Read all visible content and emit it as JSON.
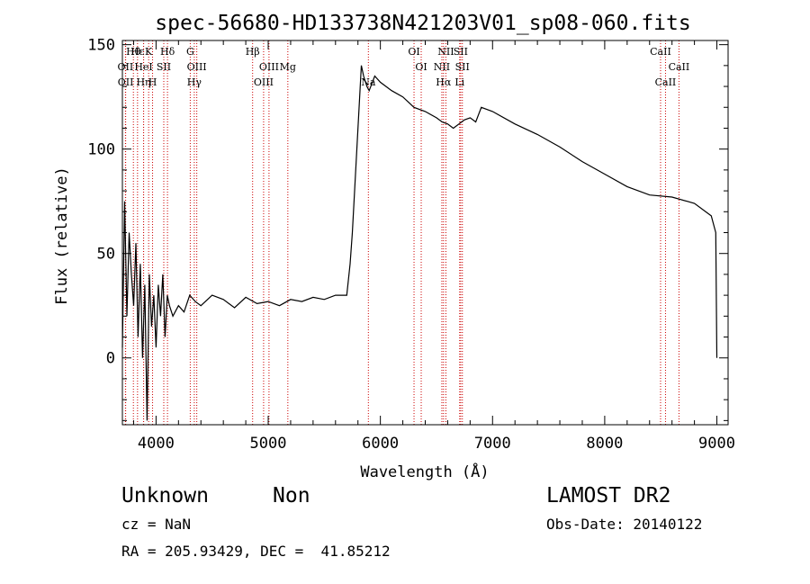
{
  "chart_data": {
    "type": "line",
    "title": "spec-56680-HD133738N421203V01_sp08-060.fits",
    "xlabel": "Wavelength (Å)",
    "ylabel": "Flux (relative)",
    "xlim": [
      3700,
      9100
    ],
    "ylim": [
      -32,
      152
    ],
    "x_ticks": [
      4000,
      5000,
      6000,
      7000,
      8000,
      9000
    ],
    "x_tick_labels": [
      "4000",
      "5000",
      "6000",
      "7000",
      "8000",
      "9000"
    ],
    "y_ticks": [
      0,
      50,
      100,
      150
    ],
    "y_tick_labels": [
      "0",
      "50",
      "100",
      "150"
    ],
    "grid": false,
    "series": [
      {
        "color": "#000000",
        "x": [
          3700,
          3720,
          3740,
          3760,
          3780,
          3800,
          3820,
          3840,
          3860,
          3880,
          3900,
          3920,
          3940,
          3960,
          3980,
          4000,
          4020,
          4040,
          4060,
          4080,
          4100,
          4120,
          4150,
          4200,
          4250,
          4300,
          4350,
          4400,
          4500,
          4600,
          4700,
          4800,
          4900,
          5000,
          5100,
          5200,
          5300,
          5400,
          5500,
          5600,
          5700,
          5730,
          5750,
          5770,
          5790,
          5810,
          5830,
          5850,
          5880,
          5900,
          5950,
          6000,
          6100,
          6200,
          6300,
          6400,
          6500,
          6550,
          6600,
          6650,
          6700,
          6750,
          6800,
          6850,
          6900,
          7000,
          7200,
          7400,
          7600,
          7800,
          8000,
          8200,
          8400,
          8600,
          8800,
          8950,
          8990,
          9000
        ],
        "y": [
          5,
          75,
          20,
          60,
          40,
          25,
          55,
          10,
          45,
          0,
          35,
          -30,
          40,
          15,
          30,
          5,
          35,
          20,
          40,
          10,
          30,
          25,
          20,
          25,
          22,
          30,
          27,
          25,
          30,
          28,
          24,
          29,
          26,
          27,
          25,
          28,
          27,
          29,
          28,
          30,
          30,
          45,
          60,
          80,
          100,
          120,
          140,
          135,
          130,
          128,
          135,
          132,
          128,
          125,
          120,
          118,
          115,
          113,
          112,
          110,
          112,
          114,
          115,
          113,
          120,
          118,
          112,
          107,
          101,
          94,
          88,
          82,
          78,
          77,
          74,
          68,
          60,
          0
        ]
      }
    ],
    "line_markers": [
      {
        "label": "Hθ",
        "x": 3798
      },
      {
        "label": "OII",
        "x": 3727
      },
      {
        "label": "OII",
        "x": 3729
      },
      {
        "label": "Hε",
        "x": 3835
      },
      {
        "label": "HeI",
        "x": 3889
      },
      {
        "label": "Hη",
        "x": 3889
      },
      {
        "label": "K",
        "x": 3934
      },
      {
        "label": "SII",
        "x": 4069
      },
      {
        "label": "H",
        "x": 3969
      },
      {
        "label": "Hδ",
        "x": 4102
      },
      {
        "label": "OIII",
        "x": 4363
      },
      {
        "label": "Hγ",
        "x": 4341
      },
      {
        "label": "G",
        "x": 4305
      },
      {
        "label": "OIII",
        "x": 5007
      },
      {
        "label": "OIII",
        "x": 4959
      },
      {
        "label": "Hβ",
        "x": 4861
      },
      {
        "label": "Mg",
        "x": 5175
      },
      {
        "label": "Na",
        "x": 5893
      },
      {
        "label": "OI",
        "x": 6300
      },
      {
        "label": "OI",
        "x": 6364
      },
      {
        "label": "Hα",
        "x": 6563
      },
      {
        "label": "SII",
        "x": 6716
      },
      {
        "label": "NII",
        "x": 6548
      },
      {
        "label": "Li",
        "x": 6707
      },
      {
        "label": "NII",
        "x": 6584
      },
      {
        "label": "SII",
        "x": 6731
      },
      {
        "label": "CaII",
        "x": 8542
      },
      {
        "label": "CaII",
        "x": 8498
      },
      {
        "label": "CaII",
        "x": 8662
      }
    ]
  },
  "info": {
    "object_class": "Unknown",
    "subclass": "Non",
    "survey": "LAMOST DR2",
    "cz": "cz = NaN",
    "obs_date": "Obs-Date: 20140122",
    "coords": "RA = 205.93429, DEC =  41.85212"
  },
  "colors": {
    "spectrum": "#000000",
    "marker_line": "#cc0000"
  }
}
